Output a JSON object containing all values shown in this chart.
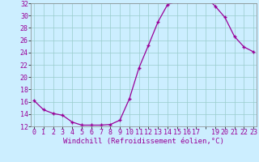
{
  "x_full": [
    0,
    1,
    2,
    3,
    4,
    5,
    6,
    7,
    8,
    9,
    10,
    11,
    12,
    13,
    14,
    15,
    16,
    17,
    18,
    19,
    20,
    21,
    22,
    23
  ],
  "y_full": [
    16.2,
    14.7,
    14.1,
    13.8,
    12.7,
    12.2,
    12.2,
    12.2,
    12.3,
    13.0,
    16.5,
    21.5,
    25.2,
    29.0,
    31.8,
    32.3,
    33.1,
    33.4,
    33.0,
    31.5,
    29.7,
    26.6,
    24.9,
    24.1
  ],
  "xtick_labels": [
    "0",
    "1",
    "2",
    "3",
    "4",
    "5",
    "6",
    "7",
    "8",
    "9",
    "10",
    "11",
    "12",
    "13",
    "14",
    "15",
    "16",
    "17",
    " ",
    "19",
    "20",
    "21",
    "22",
    "23"
  ],
  "line_color": "#990099",
  "bg_color": "#cceeff",
  "grid_color": "#99cccc",
  "xlabel": "Windchill (Refroidissement éolien,°C)",
  "ylim_min": 12,
  "ylim_max": 32,
  "xlim_min": 0,
  "xlim_max": 23,
  "ytick_step": 2,
  "axis_fontsize": 6,
  "tick_fontsize": 6,
  "xlabel_fontsize": 6.5
}
